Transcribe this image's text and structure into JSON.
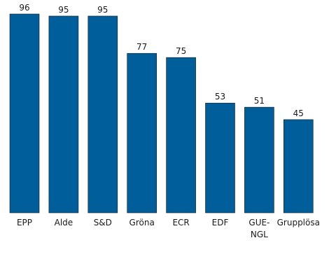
{
  "chart_data": {
    "type": "bar",
    "categories": [
      [
        "EPP"
      ],
      [
        "Alde"
      ],
      [
        "S&D"
      ],
      [
        "Gröna"
      ],
      [
        "ECR"
      ],
      [
        "EDF"
      ],
      [
        "GUE-",
        "NGL"
      ],
      [
        "Grupplösa"
      ]
    ],
    "values": [
      96,
      95,
      95,
      77,
      75,
      53,
      51,
      45
    ],
    "ylim": [
      0,
      96
    ],
    "grid": false,
    "legend": "none",
    "bar_color": "#005f9a"
  }
}
